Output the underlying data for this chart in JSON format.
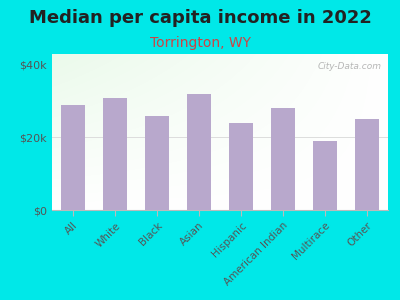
{
  "title": "Median per capita income in 2022",
  "subtitle": "Torrington, WY",
  "categories": [
    "All",
    "White",
    "Black",
    "Asian",
    "Hispanic",
    "American Indian",
    "Multirace",
    "Other"
  ],
  "values": [
    29000,
    31000,
    26000,
    32000,
    24000,
    28000,
    19000,
    25000
  ],
  "bar_color": "#b8a8cc",
  "background_color": "#00e8e8",
  "title_fontsize": 13,
  "subtitle_fontsize": 10,
  "subtitle_color": "#cc4444",
  "tick_color": "#555555",
  "ylabel_ticks": [
    "$0",
    "$20k",
    "$40k"
  ],
  "yticks": [
    0,
    20000,
    40000
  ],
  "ylim": [
    0,
    43000
  ],
  "watermark": "City-Data.com",
  "watermark_color": "#aaaaaa",
  "spine_color": "#bbbbbb",
  "grid_color": "#dddddd"
}
